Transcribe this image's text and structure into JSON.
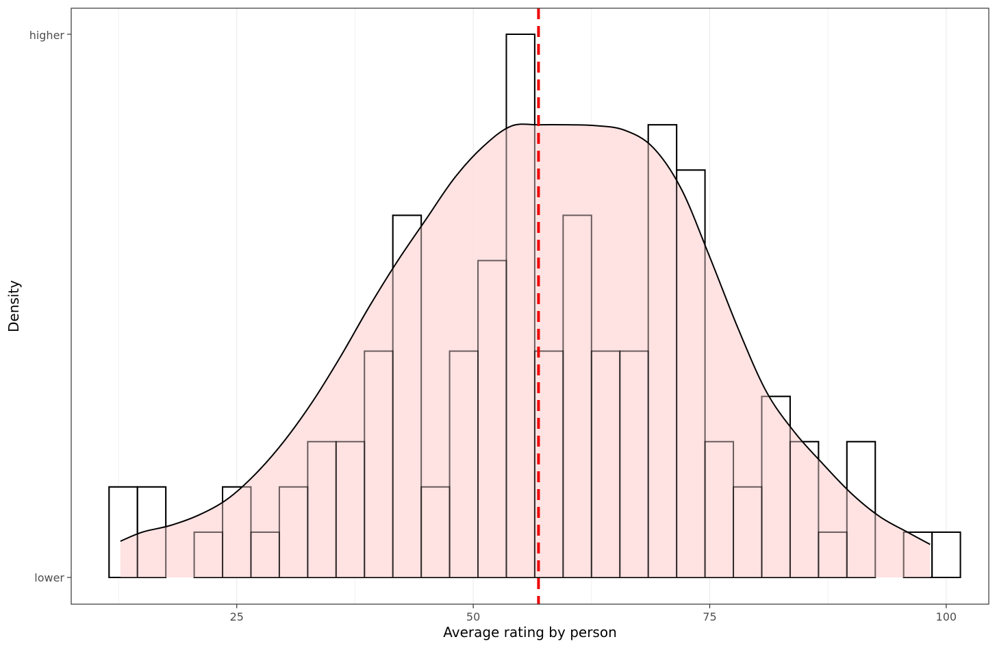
{
  "chart_data": {
    "type": "bar",
    "xlabel": "Average rating by person",
    "ylabel": "Density",
    "xlim": [
      7.5,
      104.5
    ],
    "y_tick_labels": {
      "low": "lower",
      "high": "higher"
    },
    "x_ticks": [
      25,
      50,
      75,
      100
    ],
    "grid": "vertical",
    "bin_width": 3,
    "bin_start": 11.5,
    "counts": [
      2,
      2,
      0,
      1,
      2,
      1,
      2,
      3,
      3,
      5,
      8,
      2,
      5,
      7,
      12,
      5,
      8,
      5,
      5,
      10,
      9,
      3,
      2,
      4,
      3,
      1,
      3,
      0,
      1,
      1
    ],
    "count_max": 12,
    "density_curve": {
      "x": [
        12.7,
        15,
        18,
        21,
        24,
        27,
        30,
        33,
        36,
        39,
        42,
        45,
        48,
        51,
        54,
        57,
        60,
        63,
        66,
        69,
        72,
        75,
        78,
        81,
        84,
        87,
        90,
        93,
        96,
        98.3
      ],
      "y": [
        0.8,
        1.0,
        1.15,
        1.38,
        1.73,
        2.29,
        3.01,
        3.88,
        4.89,
        5.98,
        6.99,
        7.91,
        8.82,
        9.51,
        9.97,
        10.0,
        10.0,
        9.98,
        9.88,
        9.5,
        8.58,
        7.08,
        5.5,
        4.1,
        3.2,
        2.5,
        1.85,
        1.34,
        0.99,
        0.73
      ]
    },
    "mean_line_x": 56.9,
    "colors": {
      "bar_stroke": "#000000",
      "density_fill": "#ffdfe0",
      "mean_line": "#ee0000",
      "grid": "#ebebeb",
      "panel_border": "#333333"
    }
  }
}
